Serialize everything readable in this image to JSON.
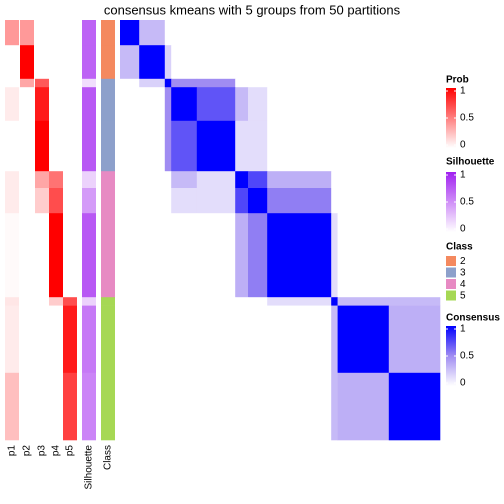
{
  "chart_data": {
    "type": "consensus-heatmap",
    "title": "consensus kmeans with 5 groups from 50 partitions",
    "annotation_labels": [
      "p1",
      "p2",
      "p3",
      "p4",
      "p5",
      "Silhouette",
      "Class"
    ],
    "segments": [
      {
        "size": 3,
        "class": "2",
        "silhouette": 0.7,
        "prob": [
          0.4,
          0.4,
          0,
          0,
          0
        ]
      },
      {
        "size": 4,
        "class": "2",
        "silhouette": 0.7,
        "prob": [
          0,
          1,
          0,
          0,
          0
        ]
      },
      {
        "size": 1,
        "class": "3",
        "silhouette": 0.15,
        "prob": [
          0,
          0.35,
          0.65,
          0,
          0
        ]
      },
      {
        "size": 4,
        "class": "3",
        "silhouette": 0.75,
        "prob": [
          0.08,
          0,
          0.9,
          0,
          0
        ]
      },
      {
        "size": 6,
        "class": "3",
        "silhouette": 0.75,
        "prob": [
          0,
          0,
          1,
          0,
          0
        ]
      },
      {
        "size": 2,
        "class": "4",
        "silhouette": 0.2,
        "prob": [
          0.08,
          0,
          0.35,
          0.55,
          0
        ]
      },
      {
        "size": 3,
        "class": "4",
        "silhouette": 0.45,
        "prob": [
          0.08,
          0,
          0.2,
          0.7,
          0
        ]
      },
      {
        "size": 10,
        "class": "4",
        "silhouette": 0.75,
        "prob": [
          0.02,
          0,
          0,
          1,
          0
        ]
      },
      {
        "size": 1,
        "class": "5",
        "silhouette": 0.2,
        "prob": [
          0.1,
          0,
          0,
          0.2,
          0.7
        ]
      },
      {
        "size": 8,
        "class": "5",
        "silhouette": 0.6,
        "prob": [
          0.08,
          0,
          0,
          0,
          0.9
        ]
      },
      {
        "size": 8,
        "class": "5",
        "silhouette": 0.55,
        "prob": [
          0.25,
          0,
          0,
          0,
          0.75
        ]
      }
    ],
    "consensus": [
      [
        1,
        0.3,
        0,
        0,
        0,
        0,
        0,
        0,
        0,
        0,
        0
      ],
      [
        0.3,
        1,
        0.2,
        0,
        0,
        0,
        0,
        0,
        0,
        0,
        0
      ],
      [
        0,
        0.2,
        1,
        0.5,
        0.5,
        0,
        0,
        0,
        0,
        0,
        0
      ],
      [
        0,
        0,
        0.5,
        1,
        0.7,
        0.3,
        0.15,
        0,
        0,
        0,
        0
      ],
      [
        0,
        0,
        0.5,
        0.7,
        1,
        0.15,
        0.15,
        0,
        0,
        0,
        0
      ],
      [
        0,
        0,
        0,
        0.3,
        0.15,
        1,
        0.75,
        0.35,
        0,
        0,
        0
      ],
      [
        0,
        0,
        0,
        0.15,
        0.15,
        0.75,
        1,
        0.55,
        0,
        0,
        0
      ],
      [
        0,
        0,
        0,
        0,
        0,
        0.35,
        0.55,
        1,
        0.15,
        0,
        0
      ],
      [
        0,
        0,
        0,
        0,
        0,
        0,
        0,
        0.15,
        1,
        0.3,
        0.3
      ],
      [
        0,
        0,
        0,
        0,
        0,
        0,
        0,
        0,
        0.3,
        1,
        0.35
      ],
      [
        0,
        0,
        0,
        0,
        0,
        0,
        0,
        0,
        0.3,
        0.35,
        1
      ]
    ],
    "legends": {
      "prob": {
        "title": "Prob",
        "ticks": [
          0,
          0.5,
          1
        ],
        "colors": [
          "#ffffff",
          "#ff0000"
        ]
      },
      "silhouette": {
        "title": "Silhouette",
        "ticks": [
          0,
          0.5,
          1
        ],
        "colors": [
          "#ffffff",
          "#a020f0"
        ]
      },
      "class": {
        "title": "Class",
        "items": [
          {
            "label": "2",
            "color": "#f4895f"
          },
          {
            "label": "3",
            "color": "#8da0cb"
          },
          {
            "label": "4",
            "color": "#e78ac3"
          },
          {
            "label": "5",
            "color": "#a6d854"
          }
        ]
      },
      "consensus": {
        "title": "Consensus",
        "ticks": [
          0,
          0.5,
          1
        ],
        "colors": [
          "#ffffff",
          "#a08cf2",
          "#0000ff"
        ]
      }
    }
  }
}
